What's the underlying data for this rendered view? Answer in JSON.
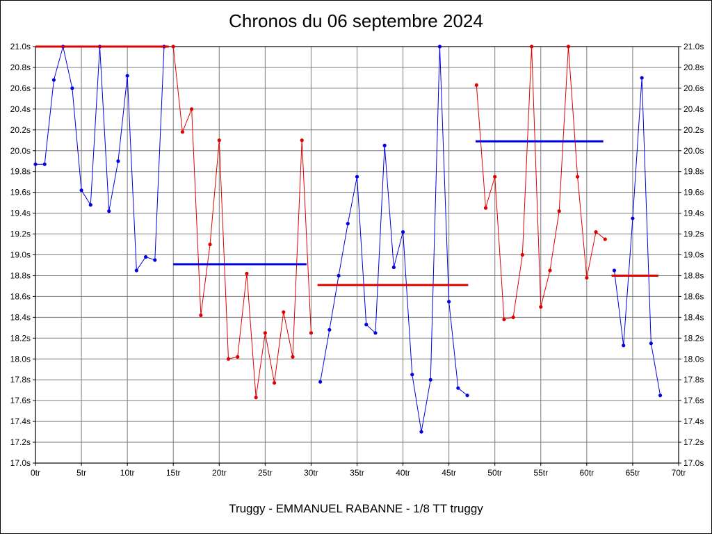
{
  "title": "Chronos du 06 septembre 2024",
  "caption": "Truggy - EMMANUEL RABANNE - 1/8 TT truggy",
  "colors": {
    "blue_series": "#0000e0",
    "red_series": "#e00000",
    "grid": "#7a7a7a",
    "axis": "#000000"
  },
  "chart_data": {
    "type": "line",
    "title": "Chronos du 06 septembre 2024",
    "xlabel": "",
    "ylabel": "",
    "xlim": [
      0,
      70
    ],
    "ylim": [
      17.0,
      21.0
    ],
    "x_tick_step": 5,
    "y_tick_step": 0.2,
    "grid": true,
    "legend_position": "none",
    "grid_color": "#7a7a7a",
    "x_ticks": [
      "0tr",
      "5tr",
      "10tr",
      "15tr",
      "20tr",
      "25tr",
      "30tr",
      "35tr",
      "40tr",
      "45tr",
      "50tr",
      "55tr",
      "60tr",
      "65tr",
      "70tr"
    ],
    "y_ticks": [
      "17.0s",
      "17.2s",
      "17.4s",
      "17.6s",
      "17.8s",
      "18.0s",
      "18.2s",
      "18.4s",
      "18.6s",
      "18.8s",
      "19.0s",
      "19.2s",
      "19.4s",
      "19.6s",
      "19.8s",
      "20.0s",
      "20.2s",
      "20.4s",
      "20.6s",
      "20.8s",
      "21.0s"
    ],
    "series": [
      {
        "name": "run-1-lap-times",
        "color": "#0000e0",
        "points": [
          [
            0,
            19.87
          ],
          [
            1,
            19.87
          ],
          [
            2,
            20.68
          ],
          [
            3,
            21.0
          ],
          [
            4,
            20.6
          ],
          [
            5,
            19.62
          ],
          [
            6,
            19.48
          ],
          [
            7,
            21.0
          ],
          [
            8,
            19.42
          ],
          [
            9,
            19.9
          ],
          [
            10,
            20.72
          ],
          [
            11,
            18.85
          ],
          [
            12,
            18.98
          ],
          [
            13,
            18.95
          ],
          [
            14,
            21.0
          ]
        ]
      },
      {
        "name": "run-2-lap-times",
        "color": "#e00000",
        "points": [
          [
            15,
            21.0
          ],
          [
            16,
            20.18
          ],
          [
            17,
            20.4
          ],
          [
            18,
            18.42
          ],
          [
            19,
            19.1
          ],
          [
            20,
            20.1
          ],
          [
            21,
            18.0
          ],
          [
            22,
            18.02
          ],
          [
            23,
            18.82
          ],
          [
            24,
            17.63
          ],
          [
            25,
            18.25
          ],
          [
            26,
            17.77
          ],
          [
            27,
            18.45
          ],
          [
            28,
            18.02
          ],
          [
            29,
            20.1
          ],
          [
            30,
            18.25
          ]
        ]
      },
      {
        "name": "run-3-lap-times",
        "color": "#0000e0",
        "points": [
          [
            31,
            17.78
          ],
          [
            32,
            18.28
          ],
          [
            33,
            18.8
          ],
          [
            34,
            19.3
          ],
          [
            35,
            19.75
          ],
          [
            36,
            18.33
          ],
          [
            37,
            18.25
          ],
          [
            38,
            20.05
          ],
          [
            39,
            18.88
          ],
          [
            40,
            19.22
          ],
          [
            41,
            17.85
          ],
          [
            42,
            17.3
          ],
          [
            43,
            17.8
          ],
          [
            44,
            21.0
          ],
          [
            45,
            18.55
          ],
          [
            46,
            17.72
          ],
          [
            47,
            17.65
          ]
        ]
      },
      {
        "name": "run-4-lap-times",
        "color": "#e00000",
        "points": [
          [
            48,
            20.63
          ],
          [
            49,
            19.45
          ],
          [
            50,
            19.75
          ],
          [
            51,
            18.38
          ],
          [
            52,
            18.4
          ],
          [
            53,
            19.0
          ],
          [
            54,
            21.0
          ],
          [
            55,
            18.5
          ],
          [
            56,
            18.85
          ],
          [
            57,
            19.42
          ],
          [
            58,
            21.0
          ],
          [
            59,
            19.75
          ],
          [
            60,
            18.78
          ],
          [
            61,
            19.22
          ],
          [
            62,
            19.15
          ]
        ]
      },
      {
        "name": "run-5-lap-times",
        "color": "#0000e0",
        "points": [
          [
            63,
            18.85
          ],
          [
            64,
            18.13
          ],
          [
            65,
            19.35
          ],
          [
            66,
            20.7
          ],
          [
            67,
            18.15
          ],
          [
            68,
            17.65
          ]
        ]
      }
    ],
    "average_lines": [
      {
        "name": "run-1-average",
        "color": "#e00000",
        "y": 21.0,
        "x1": 0,
        "x2": 14.5
      },
      {
        "name": "run-2-average",
        "color": "#0000e0",
        "y": 18.91,
        "x1": 15,
        "x2": 29.5
      },
      {
        "name": "run-3-average",
        "color": "#e00000",
        "y": 18.71,
        "x1": 30.7,
        "x2": 47.1
      },
      {
        "name": "run-4-average",
        "color": "#0000e0",
        "y": 20.09,
        "x1": 47.9,
        "x2": 61.8
      },
      {
        "name": "run-5-average",
        "color": "#e00000",
        "y": 18.8,
        "x1": 62.7,
        "x2": 67.8
      }
    ]
  }
}
